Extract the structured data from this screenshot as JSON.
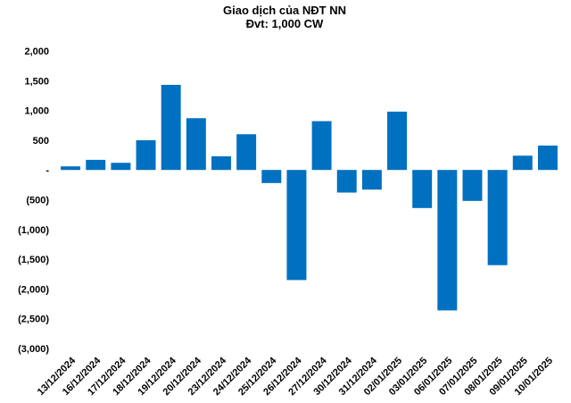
{
  "chart_data": {
    "type": "bar",
    "title": "Giao dịch của NĐT NN",
    "subtitle": "Đvt: 1,000 CW",
    "xlabel": "",
    "ylabel": "",
    "ylim": [
      -3000,
      2000
    ],
    "yticks": [
      2000,
      1500,
      1000,
      500,
      0,
      -500,
      -1000,
      -1500,
      -2000,
      -2500,
      -3000
    ],
    "ytick_labels": [
      "2,000",
      "1,500",
      "1,000",
      "500",
      "-",
      "(500)",
      "(1,000)",
      "(1,500)",
      "(2,000)",
      "(2,500)",
      "(3,000)"
    ],
    "grid": false,
    "legend": "none",
    "bar_color": "#0070C0",
    "categories": [
      "13/12/2024",
      "16/12/2024",
      "17/12/2024",
      "18/12/2024",
      "19/12/2024",
      "20/12/2024",
      "23/12/2024",
      "24/12/2024",
      "25/12/2024",
      "26/12/2024",
      "27/12/2024",
      "30/12/2024",
      "31/12/2024",
      "02/01/2025",
      "03/01/2025",
      "06/01/2025",
      "07/01/2025",
      "08/01/2025",
      "09/01/2025",
      "10/01/2025"
    ],
    "values": [
      60,
      170,
      120,
      500,
      1430,
      870,
      230,
      600,
      -220,
      -1850,
      820,
      -380,
      -330,
      980,
      -640,
      -2360,
      -520,
      -1600,
      240,
      410
    ]
  }
}
